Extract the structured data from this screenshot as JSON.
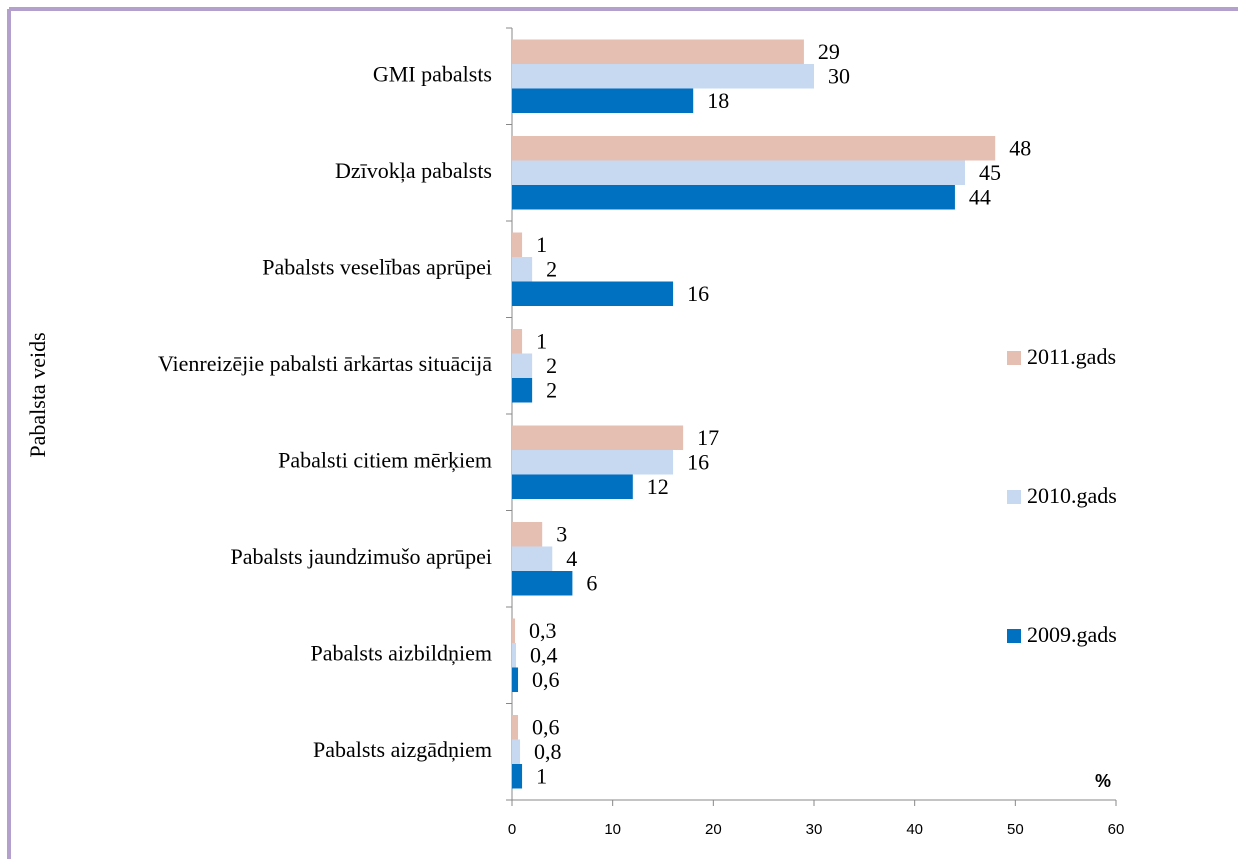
{
  "chart_data": {
    "type": "hbar",
    "y_axis_label": "Pabalsta veids",
    "x_axis_label": "%",
    "categories": [
      "GMI pabalsts",
      "Dzīvokļa pabalsts",
      "Pabalsts veselības aprūpei",
      "Vienreizējie pabalsti ārkārtas situācijā",
      "Pabalsti citiem mērķiem",
      "Pabalsts jaundzimušo aprūpei",
      "Pabalsts aizbildņiem",
      "Pabalsts aizgādņiem"
    ],
    "series": [
      {
        "name": "2011.gads",
        "color": "#e6bfb3",
        "values": [
          29,
          48,
          1,
          1,
          17,
          3,
          0.3,
          0.6
        ],
        "value_labels": [
          "29",
          "48",
          "1",
          "1",
          "17",
          "3",
          "0,3",
          "0,6"
        ]
      },
      {
        "name": "2010.gads",
        "color": "#c6d9f1",
        "values": [
          30,
          45,
          2,
          2,
          16,
          4,
          0.4,
          0.8
        ],
        "value_labels": [
          "30",
          "45",
          "2",
          "2",
          "16",
          "4",
          "0,4",
          "0,8"
        ]
      },
      {
        "name": "2009.gads",
        "color": "#0070c0",
        "values": [
          18,
          44,
          16,
          2,
          12,
          6,
          0.6,
          1
        ],
        "value_labels": [
          "18",
          "44",
          "16",
          "2",
          "12",
          "6",
          "0,6",
          "1"
        ]
      }
    ],
    "xlim": [
      0,
      60
    ],
    "xticks": [
      0,
      10,
      20,
      30,
      40,
      50,
      60
    ],
    "grid": false,
    "legend": "right"
  }
}
